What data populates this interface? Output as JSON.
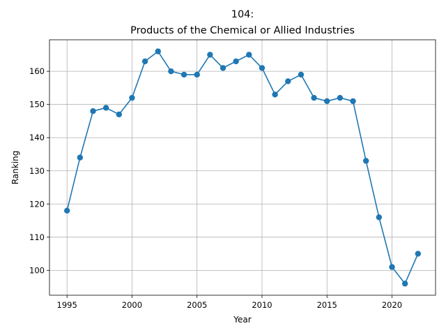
{
  "chart_data": {
    "type": "line",
    "title_line1": "104:",
    "title_line2": "Products of the Chemical or Allied Industries",
    "xlabel": "Year",
    "ylabel": "Ranking",
    "xlim": [
      1993.65,
      2023.35
    ],
    "ylim": [
      92.5,
      169.5
    ],
    "xticks": [
      1995,
      2000,
      2005,
      2010,
      2015,
      2020
    ],
    "yticks": [
      100,
      110,
      120,
      130,
      140,
      150,
      160
    ],
    "grid": true,
    "color": "#1f77b4",
    "marker": "circle",
    "series": [
      {
        "x": [
          1995,
          1996,
          1997,
          1998,
          1999,
          2000,
          2001,
          2002,
          2003,
          2004,
          2005,
          2006,
          2007,
          2008,
          2009,
          2010,
          2011,
          2012,
          2013,
          2014,
          2015,
          2016,
          2017,
          2018,
          2019,
          2020,
          2021,
          2022
        ],
        "y": [
          118,
          134,
          148,
          149,
          147,
          152,
          163,
          166,
          160,
          159,
          159,
          165,
          161,
          163,
          165,
          161,
          153,
          157,
          159,
          152,
          151,
          152,
          151,
          133,
          116,
          101,
          96,
          105
        ]
      }
    ]
  }
}
